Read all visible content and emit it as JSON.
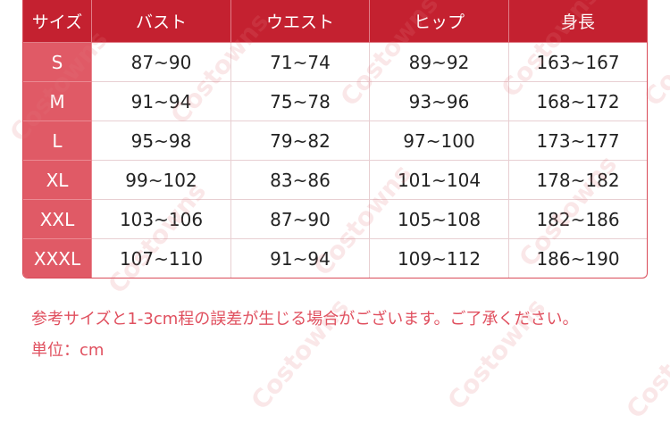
{
  "table": {
    "headers": [
      "サイズ",
      "バスト",
      "ウエスト",
      "ヒップ",
      "身長"
    ],
    "rows": [
      [
        "S",
        "87~90",
        "71~74",
        "89~92",
        "163~167"
      ],
      [
        "M",
        "91~94",
        "75~78",
        "93~96",
        "168~172"
      ],
      [
        "L",
        "95~98",
        "79~82",
        "97~100",
        "173~177"
      ],
      [
        "XL",
        "99~102",
        "83~86",
        "101~104",
        "178~182"
      ],
      [
        "XXL",
        "103~106",
        "87~90",
        "105~108",
        "182~186"
      ],
      [
        "XXXL",
        "107~110",
        "91~94",
        "109~112",
        "186~190"
      ]
    ]
  },
  "notes": {
    "disclaimer": "参考サイズと1-3cm程の誤差が生じる場合がございます。ご了承ください。",
    "unit": "単位：cm"
  },
  "watermark": "Costowns",
  "colors": {
    "header": "#c42130",
    "size_column": "#e05a66",
    "note_text": "#e0505f"
  }
}
